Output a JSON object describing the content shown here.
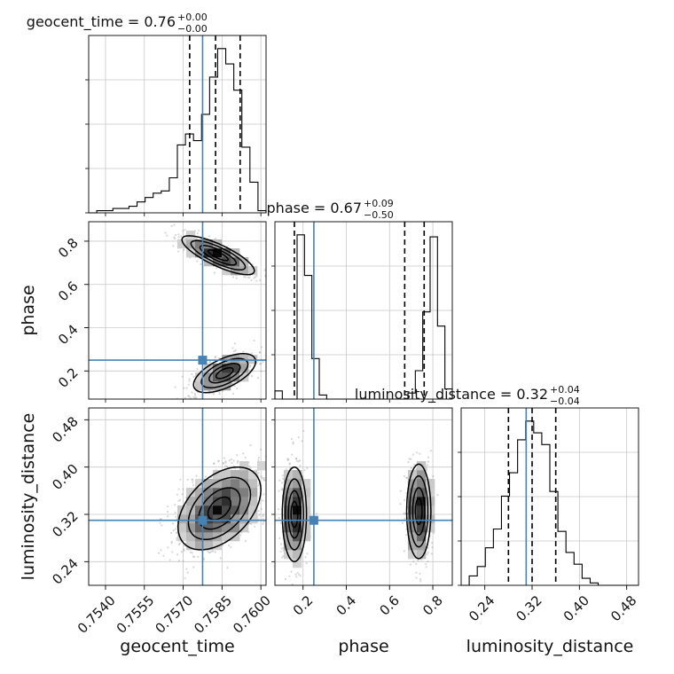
{
  "colors": {
    "truth": "#4682b4",
    "hist": "#000000",
    "grid": "#c8c8c8",
    "points": "#8c8c8c"
  },
  "chart_data": {
    "type": "corner",
    "parameters": [
      "geocent_time",
      "phase",
      "luminosity_distance"
    ],
    "truths": {
      "geocent_time": 0.75775,
      "phase": 0.25,
      "luminosity_distance": 0.31
    },
    "titles": [
      {
        "param": "geocent_time",
        "text": "geocent_time = 0.76",
        "sup": "+0.00",
        "sub": "−0.00"
      },
      {
        "param": "phase",
        "text": "phase = 0.67",
        "sup": "+0.09",
        "sub": "−0.50"
      },
      {
        "param": "luminosity_distance",
        "text": "luminosity_distance = 0.32",
        "sup": "+0.04",
        "sub": "−0.04"
      }
    ],
    "axes": {
      "geocent_time": {
        "range": [
          0.75335,
          0.7602
        ],
        "ticks": [
          "0.7540",
          "0.7555",
          "0.7570",
          "0.7585",
          "0.7600"
        ],
        "label": "geocent_time"
      },
      "phase": {
        "range": [
          0.07,
          0.89
        ],
        "ticks": [
          "0.2",
          "0.4",
          "0.6",
          "0.8"
        ],
        "label": "phase"
      },
      "luminosity_distance": {
        "range": [
          0.2,
          0.5
        ],
        "ticks": [
          "0.24",
          "0.32",
          "0.40",
          "0.48"
        ],
        "label": "luminosity_distance"
      }
    },
    "quantiles": {
      "geocent_time": [
        0.75725,
        0.75825,
        0.7592
      ],
      "phase": [
        0.16,
        0.67,
        0.76
      ],
      "luminosity_distance": [
        0.28,
        0.32,
        0.36
      ]
    },
    "histograms": {
      "geocent_time": {
        "edges_range": [
          0.75335,
          0.7602
        ],
        "counts": [
          0,
          1,
          1,
          2,
          2,
          3,
          5,
          7,
          9,
          10,
          16,
          31,
          36,
          33,
          45,
          62,
          75,
          68,
          56,
          30,
          14,
          1
        ]
      },
      "phase": {
        "edges_range": [
          0.07,
          0.89
        ],
        "counts": [
          4,
          0,
          0,
          81,
          61,
          20,
          2,
          0,
          0,
          0,
          0,
          0,
          0,
          0,
          0,
          0,
          0,
          0,
          3,
          14,
          43,
          80,
          36,
          5
        ]
      },
      "luminosity_distance": {
        "edges_range": [
          0.2,
          0.5
        ],
        "counts": [
          0,
          4,
          8,
          16,
          24,
          38,
          48,
          62,
          70,
          65,
          60,
          40,
          23,
          14,
          9,
          3,
          1,
          0,
          0,
          0,
          0,
          0
        ]
      }
    },
    "clusters": {
      "phase_vs_geocent_time": [
        {
          "mean": [
            0.75835,
            0.735
          ],
          "sd": [
            0.0007,
            0.045
          ],
          "corr": -0.8,
          "weight": 0.52
        },
        {
          "mean": [
            0.7586,
            0.19
          ],
          "sd": [
            0.0006,
            0.045
          ],
          "corr": 0.6,
          "weight": 0.48
        }
      ],
      "luminosity_distance_vs_geocent_time": [
        {
          "mean": [
            0.7584,
            0.33
          ],
          "sd": [
            0.0008,
            0.035
          ],
          "corr": 0.45,
          "weight": 1.0
        }
      ],
      "luminosity_distance_vs_phase": [
        {
          "mean": [
            0.16,
            0.32
          ],
          "sd": [
            0.028,
            0.04
          ],
          "corr": 0.0,
          "weight": 0.5
        },
        {
          "mean": [
            0.735,
            0.325
          ],
          "sd": [
            0.028,
            0.04
          ],
          "corr": 0.0,
          "weight": 0.5
        }
      ]
    },
    "grid": true
  }
}
